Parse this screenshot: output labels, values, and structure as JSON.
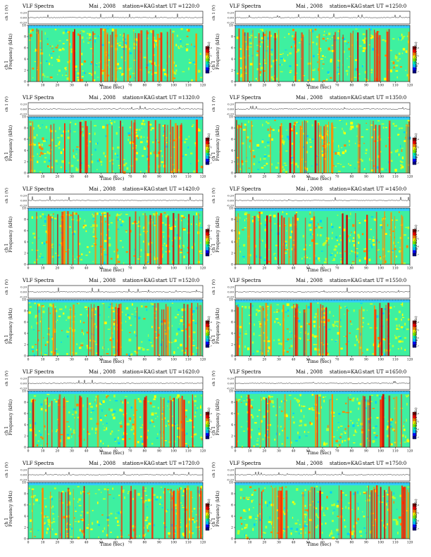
{
  "common": {
    "title": "VLF Spectra",
    "date": "Mai , 2008",
    "station": "station=KAG",
    "voltage_label": "ch 1 (V)",
    "channel_label": "ch 1",
    "freq_label": "Frequency  (kHz)",
    "time_label": "Time  (sec)",
    "colorbar_label": "log(PSD)(V²/Hz)"
  },
  "panels": [
    {
      "start": "start  UT  =1220:0"
    },
    {
      "start": "start  UT  =1250:0"
    },
    {
      "start": "start  UT  =1320:0"
    },
    {
      "start": "start  UT  =1350:0"
    },
    {
      "start": "start  UT  =1420:0"
    },
    {
      "start": "start  UT  =1450:0"
    },
    {
      "start": "start  UT  =1520:0"
    },
    {
      "start": "start  UT  =1550:0"
    },
    {
      "start": "start  UT  =1620:0"
    },
    {
      "start": "start  UT  =1650:0"
    },
    {
      "start": "start  UT  =1720:0"
    },
    {
      "start": "start  UT  =1750:0"
    }
  ],
  "chart_data": {
    "type": "heatmap",
    "xlabel": "Time  (sec)",
    "ylabel": "Frequency  (kHz)",
    "xlim": [
      0,
      120
    ],
    "ylim": [
      0,
      10
    ],
    "xticks": [
      0,
      10,
      20,
      30,
      40,
      50,
      60,
      70,
      80,
      90,
      100,
      110,
      120
    ],
    "yticks": [
      0,
      2,
      4,
      6,
      8,
      10
    ],
    "voltage_ticks": [
      "0.20",
      "0.00",
      "-0.20"
    ],
    "colorbar_ticks": [
      "-4",
      "-5",
      "-6",
      "-7"
    ],
    "colormap": [
      "#00007f",
      "#0000ff",
      "#00bfff",
      "#00ffbf",
      "#7fff00",
      "#ffff00",
      "#ff7f00",
      "#ff0000",
      "#7f0000"
    ],
    "panel_start_times_UT": [
      "1220:0",
      "1250:0",
      "1320:0",
      "1350:0",
      "1420:0",
      "1450:0",
      "1520:0",
      "1550:0",
      "1620:0",
      "1650:0",
      "1720:0",
      "1750:0"
    ]
  }
}
